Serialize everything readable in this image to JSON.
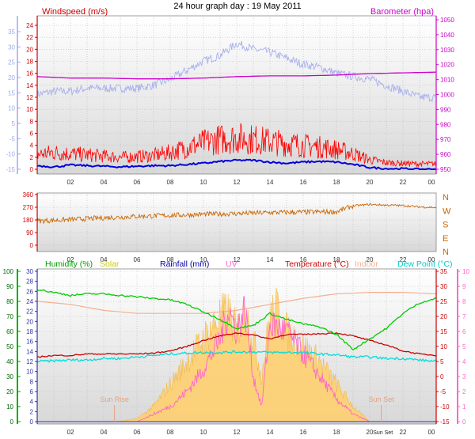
{
  "title": "24 hour graph day : 19 May 2011",
  "chart_data": [
    {
      "type": "line",
      "panel": "wind-barometer",
      "title": "24 hour graph day : 19 May 2011",
      "x_tick_labels": [
        "02",
        "04",
        "06",
        "08",
        "10",
        "12",
        "14",
        "16",
        "18",
        "20",
        "22",
        "00"
      ],
      "x_unit": "hour",
      "y_left": {
        "label": "Windspeed (m/s)",
        "ticks": [
          0,
          2,
          4,
          6,
          8,
          10,
          12,
          14,
          16,
          18,
          20,
          22,
          24
        ],
        "ylim": [
          0,
          25.5
        ],
        "color": "#cc0000"
      },
      "y_left_outer": {
        "ticks": [
          5,
          10,
          15,
          20,
          25,
          30,
          35
        ],
        "color": "#9fa8e8",
        "note_ticks": [
          "-5",
          "-10",
          "-15",
          "5",
          "10",
          "15",
          "20",
          "25",
          "30",
          "35"
        ]
      },
      "y_right": {
        "label": "Barometer (hpa)",
        "ticks": [
          950,
          960,
          970,
          980,
          990,
          1000,
          1010,
          1020,
          1030,
          1040,
          1050
        ],
        "ylim": [
          948,
          1053
        ],
        "color": "#cc00cc"
      },
      "series": [
        {
          "name": "Windspeed (m/s)",
          "color": "#ff0000",
          "x": [
            0,
            1,
            2,
            3,
            4,
            5,
            6,
            7,
            8,
            9,
            10,
            11,
            12,
            13,
            14,
            15,
            16,
            17,
            18,
            19,
            20,
            21,
            22,
            23,
            24
          ],
          "values": [
            2.5,
            2.8,
            2.6,
            2.4,
            2.2,
            2.0,
            2.1,
            2.3,
            2.8,
            3.6,
            4.4,
            5.0,
            5.2,
            5.0,
            4.6,
            4.3,
            4.0,
            3.7,
            3.3,
            2.6,
            1.6,
            1.1,
            1.0,
            0.9,
            0.9
          ]
        },
        {
          "name": "Windspeed (m/s)",
          "color": "#0000dd",
          "x": [
            0,
            1,
            2,
            3,
            4,
            5,
            6,
            7,
            8,
            9,
            10,
            11,
            12,
            13,
            14,
            15,
            16,
            17,
            18,
            19,
            20,
            21,
            22,
            23,
            24
          ],
          "values": [
            0.6,
            0.4,
            0.7,
            0.6,
            0.5,
            0.4,
            0.5,
            0.6,
            0.6,
            0.8,
            1.0,
            1.3,
            1.5,
            1.5,
            1.2,
            1.0,
            1.2,
            1.3,
            1.2,
            0.8,
            0.3,
            0.1,
            0.1,
            0,
            0
          ]
        },
        {
          "name": "Barometer (hpa)",
          "color": "#cc00cc",
          "x": [
            0,
            2,
            4,
            6,
            8,
            10,
            12,
            14,
            16,
            18,
            20,
            22,
            24
          ],
          "values": [
            1012,
            1011,
            1011,
            1010.5,
            1010.5,
            1011,
            1012,
            1012.5,
            1012.5,
            1013,
            1014,
            1014.5,
            1015
          ]
        },
        {
          "name": "",
          "color": "#a8b0ee",
          "x": [
            0,
            1,
            2,
            3,
            4,
            5,
            6,
            7,
            8,
            9,
            10,
            11,
            12,
            13,
            14,
            15,
            16,
            17,
            18,
            19,
            20,
            21,
            22,
            23,
            24
          ],
          "values": [
            12.5,
            13,
            13,
            13.5,
            13.5,
            13.5,
            13.5,
            14,
            15,
            16.5,
            18,
            19,
            21,
            20,
            19.5,
            18.5,
            17.5,
            17,
            16,
            15.5,
            15,
            14,
            13,
            12,
            12
          ]
        }
      ]
    },
    {
      "type": "line",
      "panel": "wind-direction",
      "x_tick_labels": [
        "02",
        "04",
        "06",
        "08",
        "10",
        "12",
        "14",
        "16",
        "18",
        "20",
        "22",
        "00"
      ],
      "y_left": {
        "ticks": [
          0,
          90,
          180,
          270,
          360
        ],
        "ylim": [
          0,
          360
        ],
        "color": "#cc0000"
      },
      "y_right_labels": [
        "N",
        "W",
        "S",
        "E",
        "N"
      ],
      "series": [
        {
          "name": "Wind direction",
          "color": "#cc6600",
          "x": [
            0,
            2,
            4,
            6,
            8,
            10,
            12,
            14,
            16,
            18,
            19,
            20,
            21,
            22,
            23,
            24
          ],
          "values": [
            172,
            182,
            195,
            205,
            212,
            220,
            225,
            232,
            235,
            238,
            280,
            290,
            285,
            282,
            272,
            268
          ]
        }
      ]
    },
    {
      "type": "area",
      "panel": "temp-humidity-solar",
      "x_tick_labels": [
        "02",
        "04",
        "06",
        "08",
        "10",
        "12",
        "14",
        "16",
        "18",
        "20",
        "22",
        "00"
      ],
      "series_labels": [
        "Humidity (%)",
        "Solar",
        "Rainfall (mm)",
        "UV",
        "Temperature (°C)",
        "Indoor",
        "Dew Point (°C)"
      ],
      "annotations": [
        "Sun Rise",
        "Sun Set"
      ],
      "axes": {
        "humidity": {
          "ticks": [
            0,
            10,
            20,
            30,
            40,
            50,
            60,
            70,
            80,
            90,
            100
          ],
          "color": "#00aa00"
        },
        "rain": {
          "ticks": [
            0,
            2,
            4,
            6,
            8,
            10,
            12,
            14,
            16,
            18,
            20,
            22,
            24,
            26,
            28,
            30
          ],
          "color": "#3333aa"
        },
        "temperature": {
          "ticks": [
            -15,
            -10,
            -5,
            0,
            5,
            10,
            15,
            20,
            25,
            30,
            35
          ],
          "color": "#cc0000"
        },
        "uv": {
          "ticks": [
            0,
            1,
            2,
            3,
            4,
            5,
            6,
            7,
            8,
            9,
            10
          ],
          "color": "#ff66cc"
        }
      },
      "series": [
        {
          "name": "Humidity (%)",
          "color": "#00cc00",
          "x": [
            0,
            1,
            2,
            3,
            4,
            5,
            6,
            7,
            8,
            9,
            10,
            11,
            12,
            13,
            14,
            15,
            16,
            17,
            18,
            19,
            20,
            21,
            22,
            23,
            24
          ],
          "values": [
            88,
            86,
            84,
            85,
            85,
            84,
            83,
            82,
            81,
            78,
            73,
            68,
            62,
            64,
            72,
            68,
            65,
            63,
            58,
            48,
            55,
            62,
            72,
            79,
            82
          ]
        },
        {
          "name": "Temperature (°C)",
          "color": "#cc0000",
          "x": [
            0,
            1,
            2,
            3,
            4,
            5,
            6,
            7,
            8,
            9,
            10,
            11,
            12,
            13,
            14,
            15,
            16,
            17,
            18,
            19,
            20,
            21,
            22,
            23,
            24
          ],
          "values": [
            6.5,
            7,
            7,
            7.5,
            7.5,
            7.5,
            7.5,
            7.8,
            8.5,
            10,
            12,
            13.5,
            14.5,
            13.8,
            12.5,
            14,
            14,
            14.2,
            14.5,
            13.5,
            12,
            10.5,
            8.5,
            7.5,
            7
          ]
        },
        {
          "name": "Dew Point (°C)",
          "color": "#00dddd",
          "x": [
            0,
            1,
            2,
            3,
            4,
            5,
            6,
            7,
            8,
            9,
            10,
            11,
            12,
            13,
            14,
            15,
            16,
            17,
            18,
            19,
            20,
            21,
            22,
            23,
            24
          ],
          "values": [
            5,
            5.2,
            5.5,
            5.5,
            6,
            6,
            6.5,
            7,
            7.5,
            7.8,
            8,
            8,
            8.2,
            8.2,
            8,
            8,
            8,
            7.5,
            7.2,
            6.5,
            6.5,
            6,
            6,
            5.5,
            5
          ]
        },
        {
          "name": "Indoor",
          "color": "#f4b090",
          "x": [
            0,
            2,
            4,
            6,
            8,
            10,
            12,
            14,
            16,
            18,
            20,
            22,
            24
          ],
          "values": [
            25,
            24,
            22,
            21,
            21,
            21,
            22,
            24,
            26,
            27.5,
            28,
            28,
            27.5
          ]
        },
        {
          "name": "Solar",
          "color": "#ffd070",
          "x": [
            4.8,
            6,
            7,
            8,
            9,
            10,
            11,
            11.5,
            12,
            12.5,
            13,
            13.5,
            14,
            14.5,
            15,
            16,
            17,
            18,
            19,
            20
          ],
          "values": [
            0,
            2,
            10,
            25,
            40,
            55,
            70,
            72,
            60,
            75,
            55,
            30,
            70,
            75,
            60,
            50,
            40,
            25,
            10,
            0
          ]
        },
        {
          "name": "UV",
          "color": "#ff66cc",
          "x": [
            6,
            7,
            8,
            9,
            10,
            11,
            11.5,
            12,
            12.5,
            13,
            13.5,
            14,
            15,
            16,
            17,
            18,
            19,
            20
          ],
          "values": [
            0,
            0.5,
            1,
            2,
            3.5,
            5.5,
            7.5,
            6,
            7.5,
            3,
            1,
            6.5,
            6,
            4.5,
            3,
            1.5,
            0.5,
            0
          ]
        },
        {
          "name": "Rainfall (mm)",
          "color": "#3333aa",
          "x": [
            0,
            24
          ],
          "values": [
            0,
            0
          ]
        }
      ]
    }
  ]
}
